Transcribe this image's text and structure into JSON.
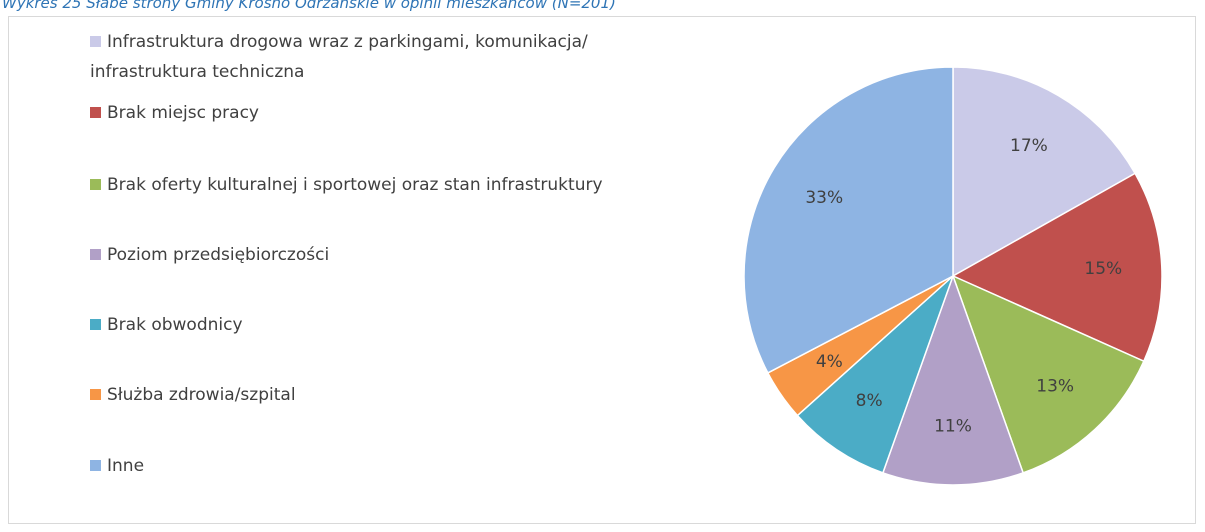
{
  "chart_data": {
    "type": "pie",
    "title": "Wykres 25 Słabe strony Gminy Krosno Odrzańskie w opinii mieszkańców (N=201)",
    "categories": [
      "Infrastruktura drogowa wraz z parkingami, komunikacja/ infrastruktura techniczna",
      "Brak miejsc pracy",
      "Brak oferty kulturalnej i sportowej oraz stan infrastruktury",
      "Poziom przedsiębiorczości",
      "Brak obwodnicy",
      "Służba zdrowia/szpital",
      "Inne"
    ],
    "values": [
      17,
      15,
      13,
      11,
      8,
      4,
      33
    ],
    "value_labels": [
      "17%",
      "15%",
      "13%",
      "11%",
      "8%",
      "4%",
      "33%"
    ],
    "colors": [
      "#cacae8",
      "#c0504d",
      "#9bbb59",
      "#b1a0c7",
      "#4bacc6",
      "#f79646",
      "#8eb4e3"
    ],
    "legend": "left"
  }
}
